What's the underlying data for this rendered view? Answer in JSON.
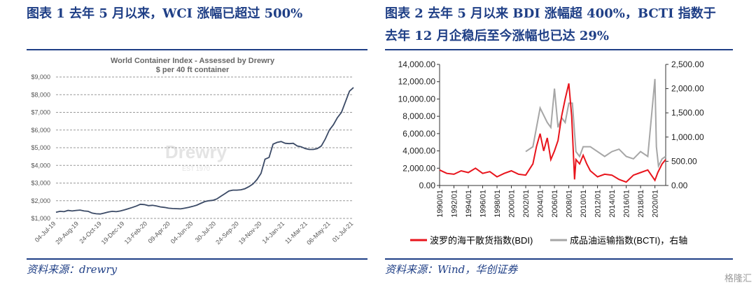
{
  "fig1": {
    "caption": "图表 1   去年 5 月以来，WCI 涨幅已超过 500%",
    "source": "资料来源：drewry",
    "chart_data": {
      "type": "line",
      "title": "World Container Index - Assessed by Drewry",
      "subtitle": "$ per 40 ft container",
      "watermark": "Drewry",
      "watermark_sub": "EST 1970",
      "ylim": [
        1000,
        9000
      ],
      "yticks": [
        "$1,000",
        "$2,000",
        "$3,000",
        "$4,000",
        "$5,000",
        "$6,000",
        "$7,000",
        "$8,000",
        "$9,000"
      ],
      "xticks": [
        "04-Jul-19",
        "29-Aug-19",
        "24-Oct-19",
        "19-Dec-19",
        "13-Feb-20",
        "09-Apr-20",
        "04-Jun-20",
        "30-Jul-20",
        "24-Sep-20",
        "19-Nov-20",
        "14-Jan-21",
        "11-Mar-21",
        "06-May-21",
        "01-Jul-21"
      ],
      "series": [
        {
          "values": [
            1350,
            1400,
            1380,
            1450,
            1420,
            1450,
            1470,
            1420,
            1400,
            1300,
            1260,
            1250,
            1300,
            1360,
            1400,
            1380,
            1420,
            1480,
            1550,
            1620,
            1700,
            1800,
            1780,
            1720,
            1740,
            1700,
            1650,
            1620,
            1580,
            1560,
            1550,
            1540,
            1580,
            1620,
            1680,
            1750,
            1850,
            1950,
            2000,
            2020,
            2100,
            2250,
            2400,
            2550,
            2600,
            2600,
            2620,
            2680,
            2800,
            2950,
            3200,
            3550,
            4350,
            4450,
            5200,
            5300,
            5350,
            5250,
            5230,
            5250,
            5100,
            5050,
            4950,
            4900,
            4900,
            4950,
            5100,
            5500,
            6000,
            6300,
            6700,
            7000,
            7600,
            8200,
            8400
          ]
        }
      ],
      "color": "#3b4a66"
    }
  },
  "fig2": {
    "caption_line1": "图表 2   去年 5 月以来 BDI 涨幅超 400%，BCTI 指数于",
    "caption_line2": "去年 12 月企稳后至今涨幅也已达 29%",
    "source": "资料来源：Wind，华创证券",
    "chart_data": {
      "type": "line",
      "ylim_left": [
        0,
        14000
      ],
      "ylim_right": [
        0,
        2500
      ],
      "yticks_left": [
        "0.00",
        "2,000.00",
        "4,000.00",
        "6,000.00",
        "8,000.00",
        "10,000.00",
        "12,000.00",
        "14,000.00"
      ],
      "yticks_right": [
        "0.00",
        "500.00",
        "1,000.00",
        "1,500.00",
        "2,000.00",
        "2,500.00"
      ],
      "xticks": [
        "1990/01",
        "1992/01",
        "1994/01",
        "1996/01",
        "1998/01",
        "2000/01",
        "2002/01",
        "2004/01",
        "2006/01",
        "2008/01",
        "2010/01",
        "2012/01",
        "2014/01",
        "2016/01",
        "2018/01",
        "2020/01"
      ],
      "series": [
        {
          "name": "波罗的海干散货指数(BDI)",
          "axis": "left",
          "color": "#e8141c",
          "x": [
            1990,
            1991,
            1992,
            1993,
            1994,
            1995,
            1996,
            1997,
            1998,
            1999,
            2000,
            2001,
            2002,
            2003,
            2003.5,
            2004,
            2004.5,
            2005,
            2005.5,
            2006,
            2006.5,
            2007,
            2007.5,
            2008,
            2008.4,
            2008.8,
            2009,
            2009.5,
            2010,
            2010.5,
            2011,
            2012,
            2013,
            2014,
            2015,
            2016,
            2017,
            2018,
            2019,
            2020,
            2020.4,
            2021,
            2021.5
          ],
          "y": [
            1800,
            1400,
            1300,
            1700,
            1500,
            2000,
            1400,
            1600,
            1000,
            1400,
            1700,
            1300,
            1200,
            2500,
            4500,
            6000,
            4000,
            5500,
            3000,
            4000,
            5200,
            8000,
            10000,
            11800,
            8000,
            700,
            3000,
            2500,
            3500,
            2500,
            1700,
            1000,
            1300,
            1200,
            700,
            400,
            1200,
            1500,
            1800,
            600,
            1500,
            2500,
            3000
          ]
        },
        {
          "name": "成品油运输指数(BCTI)，右轴",
          "axis": "right",
          "color": "#a6a6a6",
          "x": [
            2002,
            2003,
            2004,
            2005,
            2005.5,
            2006,
            2006.5,
            2007,
            2007.5,
            2008,
            2008.5,
            2009,
            2009.5,
            2010,
            2011,
            2012,
            2013,
            2014,
            2015,
            2016,
            2017,
            2018,
            2019,
            2020,
            2020.2,
            2020.5,
            2021,
            2021.5
          ],
          "y": [
            700,
            800,
            1600,
            1300,
            1200,
            2000,
            1200,
            1400,
            1300,
            1700,
            1700,
            700,
            600,
            800,
            800,
            700,
            600,
            700,
            750,
            600,
            550,
            700,
            600,
            2200,
            800,
            400,
            550,
            600
          ]
        }
      ]
    }
  },
  "watermark": "格隆汇"
}
